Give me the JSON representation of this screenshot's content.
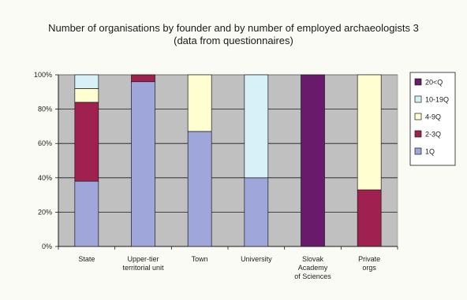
{
  "chart_data": {
    "type": "bar",
    "stacked": true,
    "title": "Number of organisations by founder and by number of employed archaeologists 3",
    "subtitle": "(data from questionnaires)",
    "categories": [
      [
        "State"
      ],
      [
        "Upper-tier",
        "territorial unit"
      ],
      [
        "Town"
      ],
      [
        "University"
      ],
      [
        "Slovak",
        "Academy",
        "of Sciences"
      ],
      [
        "Private",
        "orgs"
      ]
    ],
    "series": [
      {
        "name": "1Q",
        "color": "#9fa6d9",
        "values": [
          38,
          96,
          67,
          40,
          0,
          0
        ]
      },
      {
        "name": "2-3Q",
        "color": "#a02050",
        "values": [
          46,
          4,
          0,
          0,
          0,
          33
        ]
      },
      {
        "name": "4-9Q",
        "color": "#fefed0",
        "values": [
          8,
          0,
          33,
          0,
          0,
          67
        ]
      },
      {
        "name": "10-19Q",
        "color": "#d8f0f8",
        "values": [
          8,
          0,
          0,
          60,
          0,
          0
        ]
      },
      {
        "name": "20<Q",
        "color": "#6a1a6a",
        "values": [
          0,
          0,
          0,
          0,
          100,
          0
        ]
      }
    ],
    "legend_order": [
      "20<Q",
      "10-19Q",
      "4-9Q",
      "2-3Q",
      "1Q"
    ],
    "ylim": [
      0,
      100
    ],
    "yticks": [
      "0%",
      "20%",
      "40%",
      "60%",
      "80%",
      "100%"
    ],
    "grid": true,
    "legend_position": "right",
    "plot_background": "#c0c0c0"
  }
}
